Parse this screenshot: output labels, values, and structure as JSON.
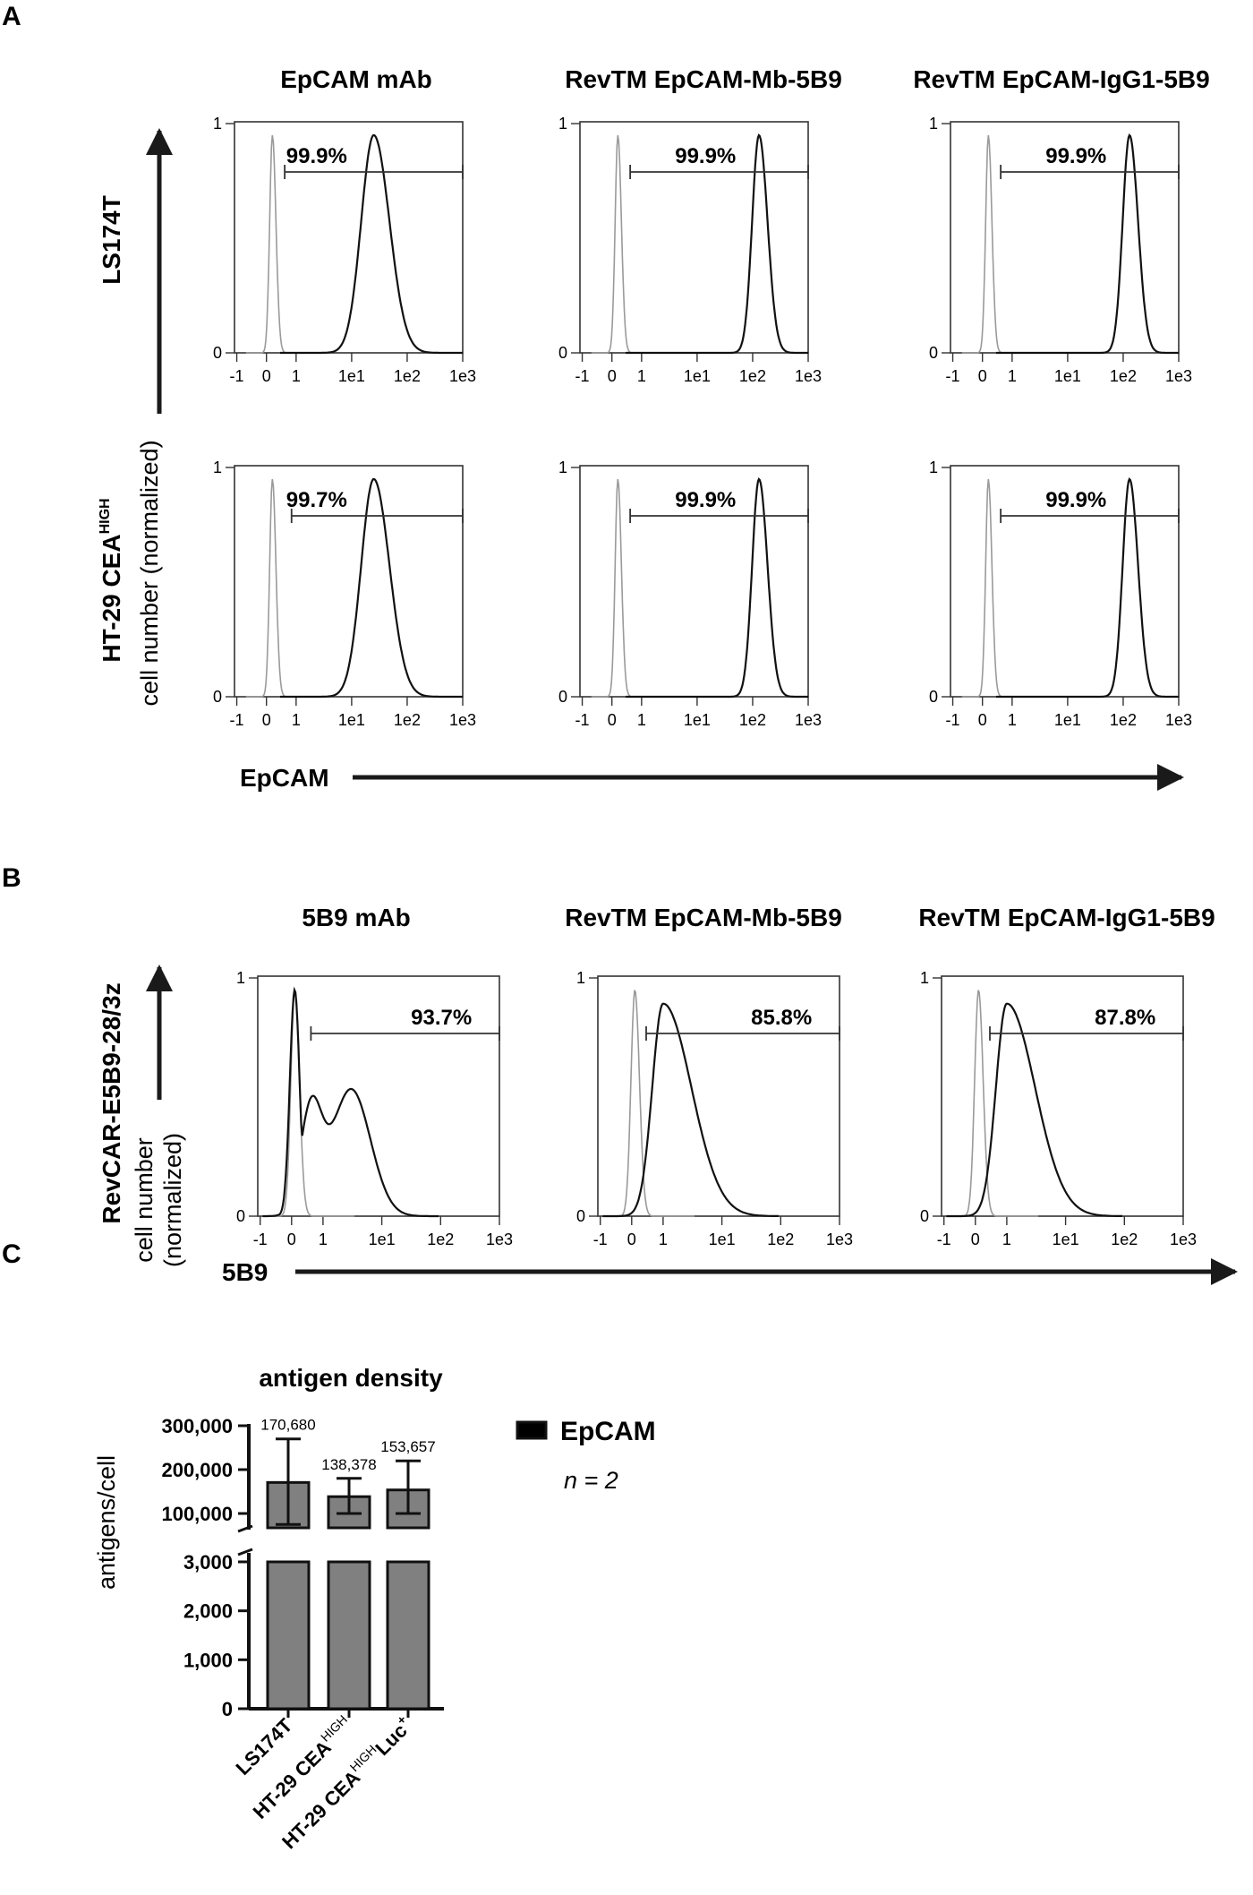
{
  "panels": {
    "a": "A",
    "b": "B",
    "c": "C"
  },
  "panel_a": {
    "col_titles": [
      "EpCAM mAb",
      "RevTM EpCAM-Mb-5B9",
      "RevTM EpCAM-IgG1-5B9"
    ],
    "row1_label": "LS174T",
    "row2_label_main": "HT-29 CEA",
    "row2_label_sup": "HIGH",
    "ylabel": "cell number (normalized)",
    "xlabel": "EpCAM"
  },
  "panel_b": {
    "col_titles": [
      "5B9 mAb",
      "RevTM EpCAM-Mb-5B9",
      "RevTM EpCAM-IgG1-5B9"
    ],
    "row_label": "RevCAR-E5B9-28/3z",
    "ylabel_line1": "cell number",
    "ylabel_line2": "(normalized)",
    "xlabel": "5B9"
  },
  "panel_c": {
    "title": "antigen density",
    "ylabel": "antigens/cell",
    "legend": "EpCAM",
    "n_text": "n = 2",
    "legend_color": "#808080"
  },
  "chart_data": [
    {
      "type": "histogram",
      "panel": "A",
      "x_tick_labels": [
        "-1",
        "0",
        "1",
        "1e1",
        "1e2",
        "1e3"
      ],
      "y_tick_labels": [
        "0",
        "1"
      ],
      "ylim": [
        0,
        1
      ],
      "xscale": "biexponential",
      "control_color": "#9a9a9a",
      "stain_color": "#111111",
      "series": [
        {
          "row": "LS174T",
          "column": "EpCAM mAb",
          "gate_percent": "99.9%",
          "control_peak": 0.2,
          "stain_peak": 25
        },
        {
          "row": "LS174T",
          "column": "RevTM EpCAM-Mb-5B9",
          "gate_percent": "99.9%",
          "control_peak": 0.2,
          "stain_peak": 130
        },
        {
          "row": "LS174T",
          "column": "RevTM EpCAM-IgG1-5B9",
          "gate_percent": "99.9%",
          "control_peak": 0.2,
          "stain_peak": 130
        },
        {
          "row": "HT-29 CEA HIGH",
          "column": "EpCAM mAb",
          "gate_percent": "99.7%",
          "control_peak": 0.2,
          "stain_peak": 25
        },
        {
          "row": "HT-29 CEA HIGH",
          "column": "RevTM EpCAM-Mb-5B9",
          "gate_percent": "99.9%",
          "control_peak": 0.2,
          "stain_peak": 130
        },
        {
          "row": "HT-29 CEA HIGH",
          "column": "RevTM EpCAM-IgG1-5B9",
          "gate_percent": "99.9%",
          "control_peak": 0.2,
          "stain_peak": 130
        }
      ]
    },
    {
      "type": "histogram",
      "panel": "B",
      "x_tick_labels": [
        "-1",
        "0",
        "1",
        "1e1",
        "1e2",
        "1e3"
      ],
      "y_tick_labels": [
        "0",
        "1"
      ],
      "ylim": [
        0,
        1
      ],
      "xscale": "biexponential",
      "series": [
        {
          "row": "RevCAR-E5B9-28/3z",
          "column": "5B9 mAb",
          "gate_percent": "93.7%"
        },
        {
          "row": "RevCAR-E5B9-28/3z",
          "column": "RevTM EpCAM-Mb-5B9",
          "gate_percent": "85.8%"
        },
        {
          "row": "RevCAR-E5B9-28/3z",
          "column": "RevTM EpCAM-IgG1-5B9",
          "gate_percent": "87.8%"
        }
      ]
    },
    {
      "type": "bar",
      "panel": "C",
      "title": "antigen density",
      "ylabel": "antigens/cell",
      "categories": [
        "LS174T",
        "HT-29 CEA HIGH",
        "HT-29 CEA HIGH Luc+"
      ],
      "category_labels": [
        {
          "main": "LS174T",
          "sup": ""
        },
        {
          "main": "HT-29 CEA",
          "sup": "HIGH"
        },
        {
          "main": "HT-29 CEA",
          "sup": "HIGH",
          "suffix": "Luc",
          "suffix_sup": "+"
        }
      ],
      "values": [
        170680,
        138378,
        153657
      ],
      "value_labels": [
        "170,680",
        "138,378",
        "153,657"
      ],
      "error_low": [
        75000,
        100000,
        100000
      ],
      "error_high": [
        270000,
        180000,
        220000
      ],
      "y_break": true,
      "lower_ylim": [
        0,
        3000
      ],
      "upper_ylim": [
        100000,
        300000
      ],
      "lower_ticks": [
        "0",
        "1,000",
        "2,000",
        "3,000"
      ],
      "upper_ticks": [
        "100,000",
        "200,000",
        "300,000"
      ],
      "series": [
        {
          "name": "EpCAM",
          "values": [
            170680,
            138378,
            153657
          ]
        }
      ]
    }
  ]
}
